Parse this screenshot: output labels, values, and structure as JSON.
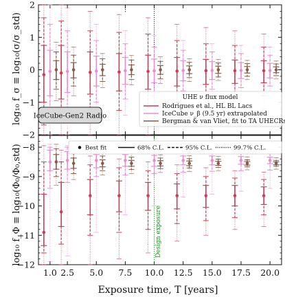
{
  "chart_data": [
    {
      "type": "scatter",
      "panel": "top",
      "ylabel": "log₁₀ f_σ ≡ log₁₀(σ/σ_std)",
      "ylim": [
        -2,
        2
      ],
      "yticks": [
        "−2",
        "−1",
        "0",
        "1",
        "2"
      ],
      "x": [
        1.0,
        2.5,
        5.0,
        7.5,
        10.0,
        12.5,
        15.0,
        17.5,
        20.0
      ],
      "series": [
        {
          "name": "Rodrigues et al., HL BL Lacs",
          "color": "#d23a55",
          "values": [
            -0.15,
            -0.1,
            -0.08,
            -0.07,
            -0.05,
            -0.04,
            -0.03,
            -0.03,
            -0.03
          ],
          "ci68": [
            [
              -1.0,
              0.75
            ],
            [
              -0.9,
              0.75
            ],
            [
              -0.75,
              0.55
            ],
            [
              -0.65,
              0.5
            ],
            [
              -0.6,
              0.45
            ],
            [
              -0.5,
              0.38
            ],
            [
              -0.45,
              0.32
            ],
            [
              -0.42,
              0.3
            ],
            [
              -0.4,
              0.28
            ]
          ],
          "ci95": [
            [
              -1.7,
              1.6
            ],
            [
              -1.5,
              1.5
            ],
            [
              -1.35,
              1.2
            ],
            [
              -1.25,
              1.15
            ],
            [
              -1.15,
              1.1
            ],
            [
              -1.0,
              0.9
            ],
            [
              -0.9,
              0.8
            ],
            [
              -0.85,
              0.75
            ],
            [
              -0.8,
              0.7
            ]
          ],
          "ci997": [
            [
              -2.0,
              2.0
            ],
            [
              -2.0,
              2.0
            ],
            [
              -2.0,
              1.8
            ],
            [
              -2.0,
              1.7
            ],
            [
              -2.0,
              1.6
            ],
            [
              -1.6,
              1.4
            ],
            [
              -1.4,
              1.3
            ],
            [
              -1.3,
              1.2
            ],
            [
              -1.2,
              1.1
            ]
          ]
        },
        {
          "name": "IceCube ν_β (9.5 yr) extrapolated",
          "color": "#e58fd0",
          "values": [
            -0.05,
            -0.05,
            -0.04,
            -0.03,
            -0.03,
            -0.02,
            -0.02,
            -0.02,
            -0.02
          ],
          "ci68": [
            [
              -0.8,
              0.6
            ],
            [
              -0.7,
              0.55
            ],
            [
              -0.5,
              0.42
            ],
            [
              -0.45,
              0.38
            ],
            [
              -0.4,
              0.33
            ],
            [
              -0.34,
              0.28
            ],
            [
              -0.3,
              0.25
            ],
            [
              -0.27,
              0.22
            ],
            [
              -0.25,
              0.2
            ]
          ],
          "ci95": [
            [
              -1.5,
              1.4
            ],
            [
              -1.3,
              1.2
            ],
            [
              -1.0,
              0.9
            ],
            [
              -0.9,
              0.8
            ],
            [
              -0.8,
              0.7
            ],
            [
              -0.65,
              0.6
            ],
            [
              -0.6,
              0.55
            ],
            [
              -0.55,
              0.5
            ],
            [
              -0.5,
              0.45
            ]
          ],
          "ci997": [
            [
              -2.0,
              2.0
            ],
            [
              -2.0,
              1.9
            ],
            [
              -1.6,
              1.4
            ],
            [
              -1.4,
              1.2
            ],
            [
              -1.25,
              1.05
            ],
            [
              -1.0,
              0.9
            ],
            [
              -0.9,
              0.8
            ],
            [
              -0.85,
              0.75
            ],
            [
              -0.8,
              0.7
            ]
          ]
        },
        {
          "name": "Bergman & van Vliet, fit to TA UHECRs",
          "color": "#8a5a48",
          "values": [
            0.0,
            0.0,
            0.0,
            0.0,
            0.0,
            0.0,
            0.0,
            0.0,
            0.0
          ],
          "ci68": [
            [
              -0.3,
              0.28
            ],
            [
              -0.25,
              0.22
            ],
            [
              -0.18,
              0.17
            ],
            [
              -0.15,
              0.15
            ],
            [
              -0.14,
              0.13
            ],
            [
              -0.12,
              0.12
            ],
            [
              -0.11,
              0.11
            ],
            [
              -0.1,
              0.1
            ],
            [
              -0.09,
              0.09
            ]
          ],
          "ci95": [
            [
              -0.6,
              0.55
            ],
            [
              -0.5,
              0.45
            ],
            [
              -0.36,
              0.34
            ],
            [
              -0.3,
              0.3
            ],
            [
              -0.28,
              0.26
            ],
            [
              -0.24,
              0.23
            ],
            [
              -0.22,
              0.21
            ],
            [
              -0.2,
              0.19
            ],
            [
              -0.18,
              0.18
            ]
          ],
          "ci997": [
            [
              -0.95,
              0.85
            ],
            [
              -0.8,
              0.7
            ],
            [
              -0.55,
              0.5
            ],
            [
              -0.46,
              0.44
            ],
            [
              -0.42,
              0.4
            ],
            [
              -0.36,
              0.34
            ],
            [
              -0.33,
              0.32
            ],
            [
              -0.3,
              0.29
            ],
            [
              -0.28,
              0.27
            ]
          ]
        }
      ],
      "badge": "IceCube-Gen2 Radio",
      "legend_title": "UHE ν flux model",
      "legend_placement": "lower-right"
    },
    {
      "type": "scatter",
      "panel": "bottom",
      "ylabel": "log₁₀ f_Φ ≡ log₁₀(Φ₀/Φ₀,std)",
      "ylim": [
        -12,
        -7.6
      ],
      "yticks": [
        "−12",
        "−11",
        "−10",
        "−9",
        "−8"
      ],
      "xlabel": "Exposure time, T [years]",
      "xticks": [
        "1.0",
        "2.5",
        "5.0",
        "7.5",
        "10.0",
        "12.5",
        "15.0",
        "17.5",
        "20.0"
      ],
      "x": [
        1.0,
        2.5,
        5.0,
        7.5,
        10.0,
        12.5,
        15.0,
        17.5,
        20.0
      ],
      "series": [
        {
          "name": "Rodrigues et al., HL BL Lacs",
          "color": "#d23a55",
          "values": [
            -10.9,
            -10.2,
            -9.65,
            -9.65,
            -9.65,
            -9.65,
            -9.65,
            -9.65,
            -9.65
          ],
          "ci68": [
            [
              -11.35,
              -9.6
            ],
            [
              -10.7,
              -9.2
            ],
            [
              -10.3,
              -9.1
            ],
            [
              -10.2,
              -9.15
            ],
            [
              -10.15,
              -9.2
            ],
            [
              -10.1,
              -9.25
            ],
            [
              -10.05,
              -9.3
            ],
            [
              -10.0,
              -9.3
            ],
            [
              -9.95,
              -9.35
            ]
          ],
          "ci95": [
            [
              -11.6,
              -8.5
            ],
            [
              -11.3,
              -8.5
            ],
            [
              -11.0,
              -8.6
            ],
            [
              -10.9,
              -8.7
            ],
            [
              -10.8,
              -8.8
            ],
            [
              -10.6,
              -8.9
            ],
            [
              -10.5,
              -9.0
            ],
            [
              -10.4,
              -9.05
            ],
            [
              -10.3,
              -9.1
            ]
          ],
          "ci997": [
            [
              -12.0,
              -7.95
            ],
            [
              -12.0,
              -8.1
            ],
            [
              -12.0,
              -8.3
            ],
            [
              -11.8,
              -8.4
            ],
            [
              -11.6,
              -8.5
            ],
            [
              -11.2,
              -8.6
            ],
            [
              -11.0,
              -8.7
            ],
            [
              -10.8,
              -8.8
            ],
            [
              -10.7,
              -8.85
            ]
          ]
        },
        {
          "name": "IceCube ν_β (9.5 yr) extrapolated",
          "color": "#e58fd0",
          "values": [
            -8.5,
            -8.45,
            -8.45,
            -8.45,
            -8.45,
            -8.45,
            -8.45,
            -8.45,
            -8.45
          ],
          "ci68": [
            [
              -8.8,
              -8.1
            ],
            [
              -8.75,
              -8.15
            ],
            [
              -8.7,
              -8.25
            ],
            [
              -8.65,
              -8.25
            ],
            [
              -8.65,
              -8.28
            ],
            [
              -8.6,
              -8.3
            ],
            [
              -8.6,
              -8.3
            ],
            [
              -8.58,
              -8.32
            ],
            [
              -8.56,
              -8.34
            ]
          ],
          "ci95": [
            [
              -9.4,
              -8.0
            ],
            [
              -9.2,
              -8.0
            ],
            [
              -9.0,
              -8.05
            ],
            [
              -8.95,
              -8.1
            ],
            [
              -8.9,
              -8.12
            ],
            [
              -8.85,
              -8.15
            ],
            [
              -8.82,
              -8.17
            ],
            [
              -8.8,
              -8.2
            ],
            [
              -8.78,
              -8.22
            ]
          ],
          "ci997": [
            [
              -11.9,
              -7.9
            ],
            [
              -11.7,
              -7.95
            ],
            [
              -10.9,
              -8.0
            ],
            [
              -10.3,
              -8.0
            ],
            [
              -10.0,
              -8.05
            ],
            [
              -9.7,
              -8.1
            ],
            [
              -9.6,
              -8.1
            ],
            [
              -9.5,
              -8.12
            ],
            [
              -9.4,
              -8.15
            ]
          ]
        },
        {
          "name": "Bergman & van Vliet, fit to TA UHECRs",
          "color": "#8a5a48",
          "values": [
            -8.5,
            -8.55,
            -8.55,
            -8.55,
            -8.55,
            -8.55,
            -8.55,
            -8.55,
            -8.55
          ],
          "ci68": [
            [
              -8.75,
              -8.25
            ],
            [
              -8.72,
              -8.37
            ],
            [
              -8.67,
              -8.43
            ],
            [
              -8.65,
              -8.45
            ],
            [
              -8.64,
              -8.46
            ],
            [
              -8.63,
              -8.47
            ],
            [
              -8.62,
              -8.48
            ],
            [
              -8.61,
              -8.49
            ],
            [
              -8.6,
              -8.5
            ]
          ],
          "ci95": [
            [
              -9.0,
              -8.05
            ],
            [
              -8.9,
              -8.2
            ],
            [
              -8.8,
              -8.3
            ],
            [
              -8.76,
              -8.34
            ],
            [
              -8.73,
              -8.37
            ],
            [
              -8.71,
              -8.39
            ],
            [
              -8.69,
              -8.41
            ],
            [
              -8.67,
              -8.43
            ],
            [
              -8.65,
              -8.45
            ]
          ],
          "ci997": [
            [
              -9.3,
              -7.9
            ],
            [
              -9.1,
              -8.05
            ],
            [
              -8.95,
              -8.18
            ],
            [
              -8.9,
              -8.22
            ],
            [
              -8.86,
              -8.26
            ],
            [
              -8.83,
              -8.29
            ],
            [
              -8.8,
              -8.31
            ],
            [
              -8.77,
              -8.33
            ],
            [
              -8.75,
              -8.36
            ]
          ]
        }
      ],
      "annotation": "Design exposure",
      "legend": [
        "Best fit",
        "68% C.L.",
        "95% C.L.",
        "99.7% C.L."
      ],
      "legend_placement": "top"
    }
  ]
}
